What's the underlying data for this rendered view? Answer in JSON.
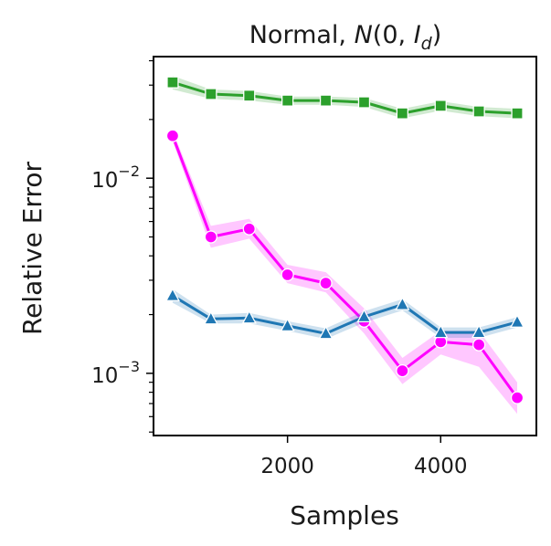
{
  "chart_data": {
    "type": "line",
    "title": "Normal, N(0, I_d)",
    "title_parts": {
      "prefix": "Normal, ",
      "dist": "N",
      "open": "(0, ",
      "mat": "I",
      "sub": "d",
      "close": ")"
    },
    "xlabel": "Samples",
    "ylabel": "Relative Error",
    "xscale": "linear",
    "yscale": "log",
    "xlim": [
      250,
      5250
    ],
    "ylim": [
      0.00048,
      0.042
    ],
    "x_ticks": [
      {
        "value": 2000,
        "label": "2000"
      },
      {
        "value": 4000,
        "label": "4000"
      }
    ],
    "y_ticks": [
      {
        "value": 0.001,
        "base": "10",
        "exp": "−3"
      },
      {
        "value": 0.01,
        "base": "10",
        "exp": "−2"
      }
    ],
    "minor_y_ticks": [
      0.0005,
      0.0006,
      0.0007,
      0.0008,
      0.0009,
      0.002,
      0.003,
      0.004,
      0.005,
      0.006,
      0.007,
      0.008,
      0.009,
      0.02,
      0.03,
      0.04
    ],
    "grid": false,
    "legend": "none",
    "x": [
      500,
      1000,
      1500,
      2000,
      2500,
      3000,
      3500,
      4000,
      4500,
      5000
    ],
    "series": [
      {
        "name": "green-square",
        "color": "#2ca02c",
        "band_color": "#2ca02c",
        "marker": "square",
        "values": [
          0.031,
          0.027,
          0.0265,
          0.025,
          0.025,
          0.0245,
          0.0215,
          0.0235,
          0.022,
          0.0215
        ],
        "lower": [
          0.0285,
          0.0255,
          0.025,
          0.0238,
          0.0238,
          0.0232,
          0.0203,
          0.0222,
          0.0208,
          0.0203
        ],
        "upper": [
          0.0335,
          0.0285,
          0.028,
          0.0262,
          0.0262,
          0.0258,
          0.0227,
          0.0248,
          0.0232,
          0.0227
        ]
      },
      {
        "name": "magenta-circle",
        "color": "#ff00ff",
        "band_color": "#ff00ff",
        "marker": "circle",
        "values": [
          0.0165,
          0.005,
          0.0055,
          0.0032,
          0.0029,
          0.00185,
          0.00103,
          0.00145,
          0.0014,
          0.00075
        ],
        "lower": [
          0.0155,
          0.0044,
          0.0049,
          0.0029,
          0.0026,
          0.0016,
          0.00088,
          0.00125,
          0.00108,
          0.00062
        ],
        "upper": [
          0.0175,
          0.0057,
          0.0062,
          0.0036,
          0.0033,
          0.00215,
          0.0012,
          0.00165,
          0.00165,
          0.0009
        ]
      },
      {
        "name": "blue-triangle",
        "color": "#1f77b4",
        "band_color": "#1f77b4",
        "marker": "triangle",
        "values": [
          0.0025,
          0.0019,
          0.00192,
          0.00175,
          0.0016,
          0.00195,
          0.00225,
          0.00162,
          0.00162,
          0.00183
        ],
        "lower": [
          0.0023,
          0.0018,
          0.0018,
          0.00165,
          0.0015,
          0.00182,
          0.0021,
          0.00152,
          0.00152,
          0.00172
        ],
        "upper": [
          0.0027,
          0.002,
          0.00204,
          0.00185,
          0.0017,
          0.00208,
          0.0024,
          0.00172,
          0.00172,
          0.00194
        ]
      }
    ]
  }
}
